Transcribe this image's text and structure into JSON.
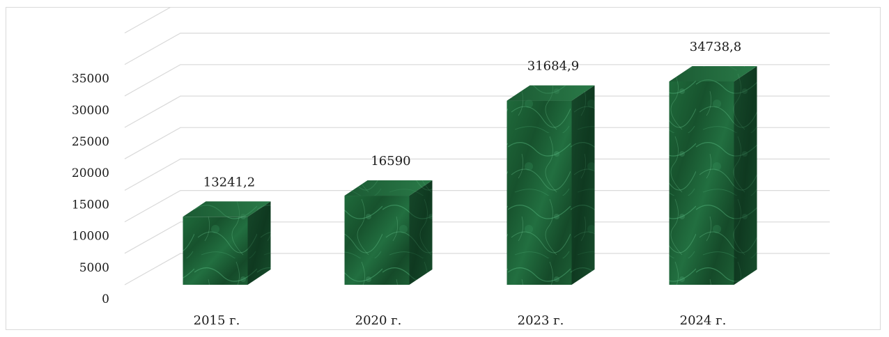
{
  "chart_data": {
    "type": "bar",
    "categories": [
      "2015 г.",
      "2020 г.",
      "2023 г.",
      "2024 г."
    ],
    "values": [
      13241.2,
      16590,
      31684.9,
      34738.8
    ],
    "data_labels": [
      "13241,2",
      "16590",
      "31684,9",
      "34738,8"
    ],
    "title": "",
    "xlabel": "",
    "ylabel": "",
    "ylim": [
      0,
      35000
    ],
    "yticks": [
      0,
      5000,
      10000,
      15000,
      20000,
      25000,
      30000,
      35000
    ],
    "ytick_labels": [
      "0",
      "5000",
      "10000",
      "15000",
      "20000",
      "25000",
      "30000",
      "35000"
    ],
    "grid": true,
    "legend": "none",
    "style": "3d-box",
    "colors": {
      "bar_front_base": "#1d5e34",
      "bar_side_base": "#143f24",
      "bar_top_base": "#236b3d",
      "bar_highlight": "#4fb079",
      "grid": "#d9d9d9"
    }
  }
}
